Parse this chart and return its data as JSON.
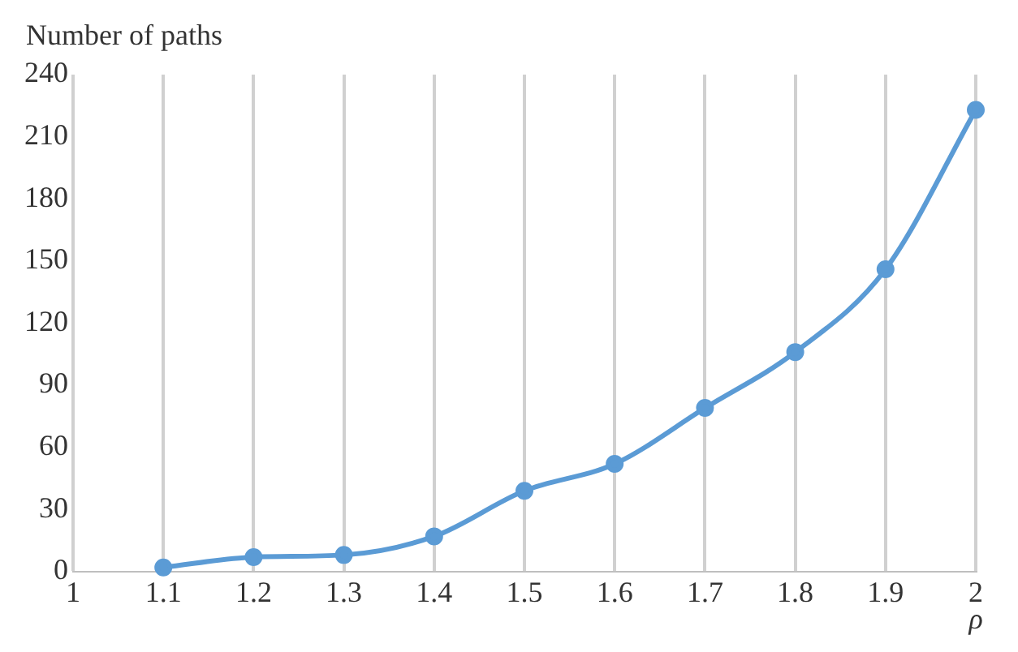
{
  "chart_data": {
    "type": "line",
    "xlabel": "ρ",
    "ylabel": "Number of paths",
    "x": [
      1.1,
      1.2,
      1.3,
      1.4,
      1.5,
      1.6,
      1.7,
      1.8,
      1.9,
      2
    ],
    "series": [
      {
        "color": "#5b9bd5",
        "values": [
          2,
          7,
          8,
          17,
          39,
          52,
          79,
          106,
          146,
          223
        ]
      }
    ],
    "xlim": [
      1,
      2
    ],
    "xticks": [
      1,
      1.1,
      1.2,
      1.3,
      1.4,
      1.5,
      1.6,
      1.7,
      1.8,
      1.9,
      2
    ],
    "ylim": [
      0,
      240
    ],
    "yticks": [
      0,
      30,
      60,
      90,
      120,
      150,
      180,
      210,
      240
    ],
    "grid": "x",
    "legend": false,
    "marker": "circle",
    "line_style": "solid"
  }
}
